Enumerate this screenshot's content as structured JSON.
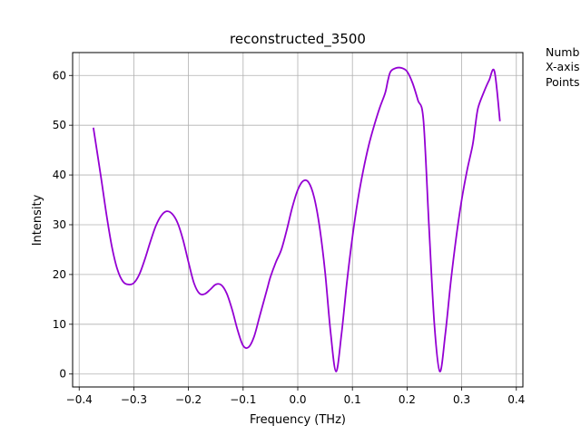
{
  "side_note": {
    "lines": [
      "Numb",
      "X-axis",
      "Points"
    ]
  },
  "chart_data": {
    "type": "line",
    "title": "reconstructed_3500",
    "xlabel": "Frequency (THz)",
    "ylabel": "Intensity",
    "xlim": [
      -0.412,
      0.412
    ],
    "ylim": [
      -2.6,
      64.6
    ],
    "grid": true,
    "line_color": "#9400d3",
    "x_ticks": [
      {
        "value": -0.4,
        "label": "−0.4"
      },
      {
        "value": -0.3,
        "label": "−0.3"
      },
      {
        "value": -0.2,
        "label": "−0.2"
      },
      {
        "value": -0.1,
        "label": "−0.1"
      },
      {
        "value": 0.0,
        "label": "0.0"
      },
      {
        "value": 0.1,
        "label": "0.1"
      },
      {
        "value": 0.2,
        "label": "0.2"
      },
      {
        "value": 0.3,
        "label": "0.3"
      },
      {
        "value": 0.4,
        "label": "0.4"
      }
    ],
    "y_ticks": [
      {
        "value": 0,
        "label": "0"
      },
      {
        "value": 10,
        "label": "10"
      },
      {
        "value": 20,
        "label": "20"
      },
      {
        "value": 30,
        "label": "30"
      },
      {
        "value": 40,
        "label": "40"
      },
      {
        "value": 50,
        "label": "50"
      },
      {
        "value": 60,
        "label": "60"
      }
    ],
    "series": [
      {
        "x": [
          -0.374,
          -0.36,
          -0.35,
          -0.34,
          -0.33,
          -0.32,
          -0.31,
          -0.3,
          -0.29,
          -0.28,
          -0.27,
          -0.26,
          -0.25,
          -0.24,
          -0.23,
          -0.22,
          -0.21,
          -0.2,
          -0.19,
          -0.18,
          -0.17,
          -0.16,
          -0.15,
          -0.14,
          -0.13,
          -0.12,
          -0.11,
          -0.1,
          -0.09,
          -0.08,
          -0.07,
          -0.06,
          -0.055,
          -0.05,
          -0.04,
          -0.03,
          -0.02,
          -0.01,
          0.0,
          0.01,
          0.02,
          0.03,
          0.04,
          0.05,
          0.06,
          0.07,
          0.08,
          0.09,
          0.1,
          0.11,
          0.12,
          0.13,
          0.14,
          0.15,
          0.16,
          0.165,
          0.17,
          0.18,
          0.19,
          0.2,
          0.21,
          0.22,
          0.23,
          0.24,
          0.25,
          0.26,
          0.27,
          0.28,
          0.29,
          0.3,
          0.31,
          0.32,
          0.325,
          0.33,
          0.34,
          0.35,
          0.36,
          0.37
        ],
        "y": [
          49.5,
          39.5,
          32.0,
          25.5,
          21.0,
          18.6,
          18.0,
          18.3,
          20.0,
          23.0,
          26.5,
          29.7,
          31.8,
          32.7,
          32.2,
          30.4,
          27.0,
          22.5,
          18.3,
          16.2,
          16.1,
          17.0,
          18.0,
          17.9,
          16.2,
          12.9,
          8.8,
          5.7,
          5.4,
          7.5,
          11.5,
          15.5,
          17.5,
          19.5,
          22.5,
          25.0,
          29.0,
          33.5,
          37.0,
          38.8,
          38.5,
          35.5,
          29.5,
          20.5,
          8.5,
          0.5,
          8.0,
          18.5,
          27.5,
          35.0,
          41.0,
          46.0,
          50.0,
          53.5,
          56.5,
          59.0,
          60.8,
          61.5,
          61.5,
          60.8,
          58.5,
          55.0,
          51.0,
          30.0,
          10.0,
          0.5,
          8.0,
          18.5,
          27.5,
          35.0,
          41.0,
          46.0,
          50.0,
          53.5,
          56.5,
          59.0,
          60.8,
          50.8
        ]
      }
    ]
  }
}
